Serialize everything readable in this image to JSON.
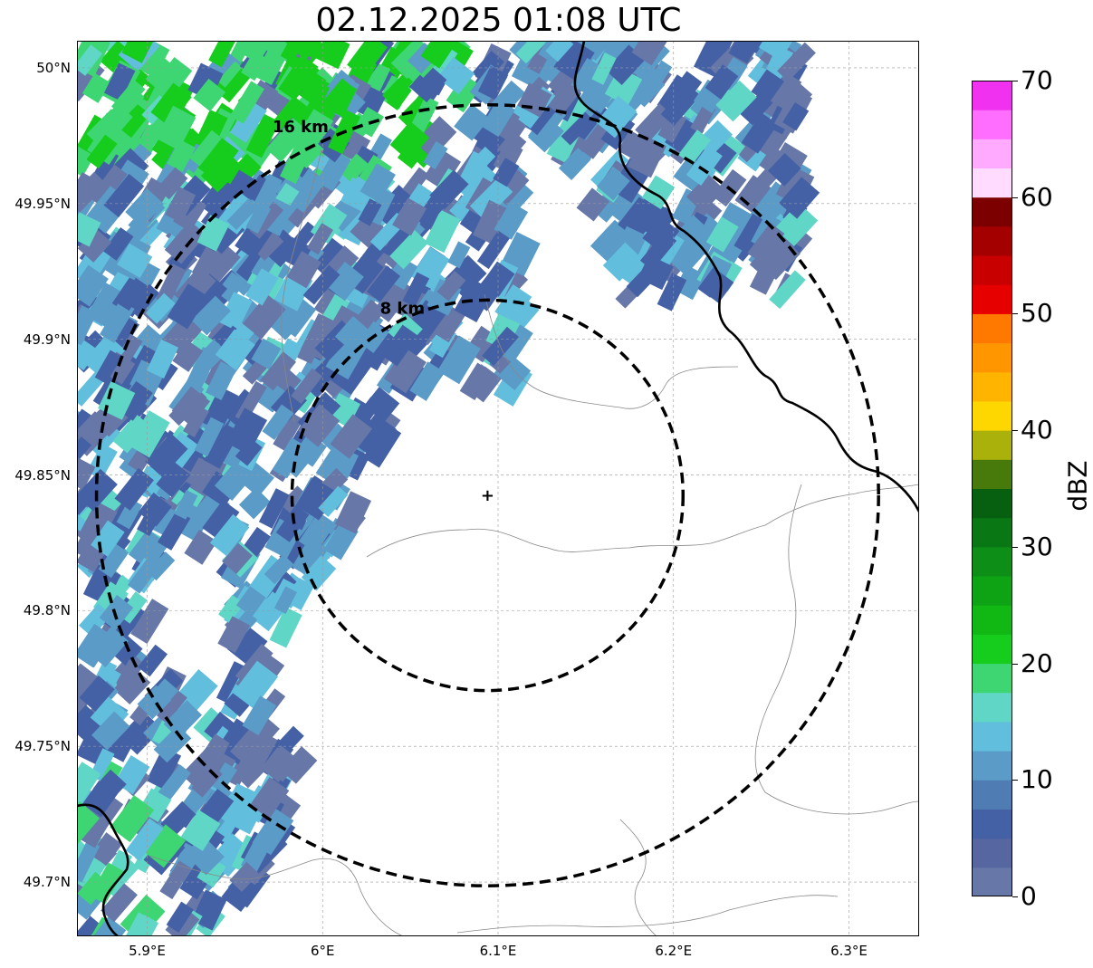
{
  "title": "02.12.2025 01:08 UTC",
  "map": {
    "lat_range": [
      49.68,
      50.01
    ],
    "lon_range": [
      5.86,
      6.34
    ],
    "lat_ticks": [
      {
        "value": 50.0,
        "label": "50°N"
      },
      {
        "value": 49.95,
        "label": "49.95°N"
      },
      {
        "value": 49.9,
        "label": "49.9°N"
      },
      {
        "value": 49.85,
        "label": "49.85°N"
      },
      {
        "value": 49.8,
        "label": "49.8°N"
      },
      {
        "value": 49.75,
        "label": "49.75°N"
      },
      {
        "value": 49.7,
        "label": "49.7°N"
      }
    ],
    "lon_ticks": [
      {
        "value": 5.9,
        "label": "5.9°E"
      },
      {
        "value": 6.0,
        "label": "6°E"
      },
      {
        "value": 6.1,
        "label": "6.1°E"
      },
      {
        "value": 6.2,
        "label": "6.2°E"
      },
      {
        "value": 6.3,
        "label": "6.3°E"
      }
    ],
    "radar_site": {
      "lat": 49.8425,
      "lon": 6.094
    },
    "range_rings": [
      {
        "label": "16 km",
        "radius_km": 16
      },
      {
        "label": "8 km",
        "radius_km": 8
      }
    ],
    "grid": true
  },
  "colorbar": {
    "label": "dBZ",
    "min": 0,
    "max": 70,
    "ticks": [
      "0",
      "10",
      "20",
      "30",
      "40",
      "50",
      "60",
      "70"
    ],
    "colors": [
      "#6677a8",
      "#5566a0",
      "#4561a6",
      "#4f7db3",
      "#5a9bc7",
      "#62bedd",
      "#5fd6c6",
      "#3dd672",
      "#16cc1c",
      "#11b814",
      "#0ea315",
      "#0d8e16",
      "#0a7715",
      "#066010",
      "#477a0a",
      "#aab10a",
      "#ffd700",
      "#ffb400",
      "#ff9600",
      "#ff7800",
      "#e60000",
      "#c80000",
      "#a50000",
      "#7d0000",
      "#ffdcff",
      "#ffaaff",
      "#ff6eff",
      "#f032f0"
    ]
  },
  "precip_colors": {
    "light": "#6677a8",
    "mid": "#4561a6",
    "blue": "#5a9bc7",
    "cyan": "#62bedd",
    "teal": "#5fd6c6",
    "green": "#3dd672",
    "bright_green": "#16cc1c"
  }
}
